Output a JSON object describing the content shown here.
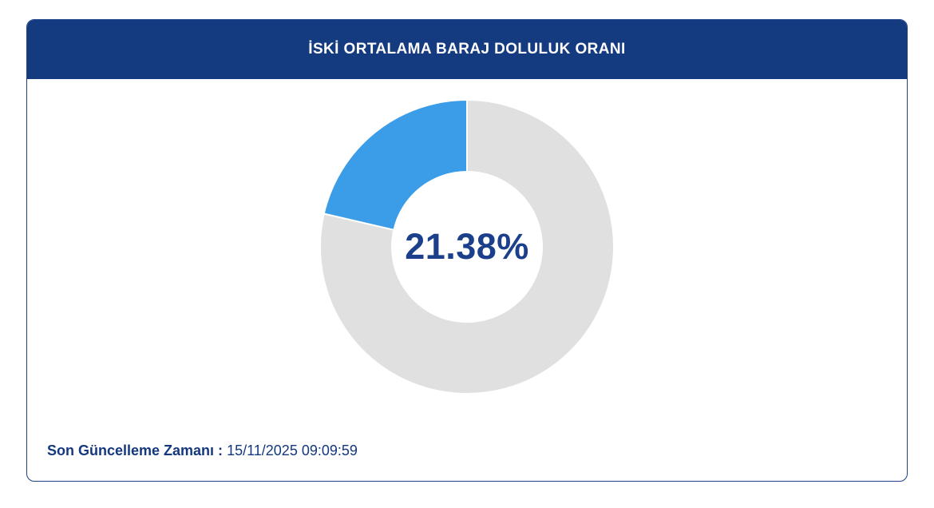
{
  "page": {
    "background": "#ffffff"
  },
  "card": {
    "border_color": "#1c418a",
    "header": {
      "title": "İSKİ ORTALAMA BARAJ DOLULUK ORANI",
      "background": "#143a80",
      "text_color": "#ffffff"
    },
    "footer": {
      "label": "Son Güncelleme Zamanı :",
      "value": "15/11/2025 09:09:59",
      "text_color": "#14387f"
    }
  },
  "chart_data": {
    "type": "pie",
    "donut": true,
    "title": "İSKİ ORTALAMA BARAJ DOLULUK ORANI",
    "values": [
      21.38,
      78.62
    ],
    "slice_colors": [
      "#3b9de8",
      "#e0e0e0"
    ],
    "center_label": "21.38%",
    "center_label_color": "#1b3f8a",
    "start_position": "top",
    "filled_sweep_direction": "counterclockwise",
    "inner_radius_ratio": 0.51,
    "separator_color": "#ffffff",
    "legend": "none"
  }
}
